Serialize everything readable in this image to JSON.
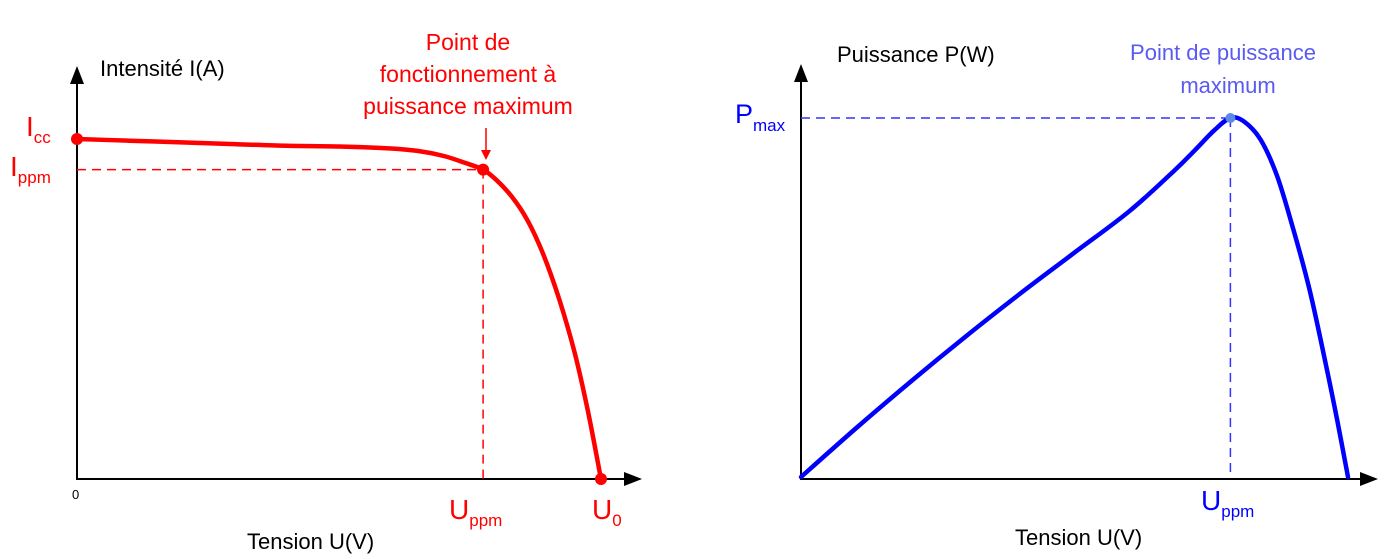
{
  "colors": {
    "axis": "#000000",
    "iv_curve": "#ff0000",
    "iv_text": "#ff0000",
    "pv_curve": "#0000ff",
    "pv_text": "#0000ff",
    "pv_annotation": "#5a5af0",
    "pv_dash": "#3333ff"
  },
  "chart_data": [
    {
      "type": "line",
      "ylabel": "Intensité I(A)",
      "xlabel": "Tension U(V)",
      "origin_label": "0",
      "annotation": {
        "lines": [
          "Point de",
          "fonctionnement à",
          "puissance maximum"
        ]
      },
      "y_marks": [
        {
          "base": "I",
          "sub": "cc",
          "value": 1.0
        },
        {
          "base": "I",
          "sub": "ppm",
          "value": 0.91
        }
      ],
      "x_marks": [
        {
          "base": "U",
          "sub": "ppm",
          "value": 0.775
        },
        {
          "base": "U",
          "sub": "0",
          "value": 1.0
        }
      ],
      "series": [
        {
          "x": [
            0,
            0.1,
            0.2,
            0.3,
            0.4,
            0.5,
            0.6,
            0.65,
            0.7,
            0.74,
            0.775,
            0.8,
            0.83,
            0.86,
            0.89,
            0.92,
            0.95,
            0.975,
            1.0
          ],
          "y": [
            1.0,
            0.995,
            0.99,
            0.985,
            0.98,
            0.978,
            0.972,
            0.965,
            0.95,
            0.93,
            0.91,
            0.88,
            0.83,
            0.76,
            0.66,
            0.53,
            0.37,
            0.2,
            0.0
          ]
        }
      ]
    },
    {
      "type": "line",
      "ylabel": "Puissance P(W)",
      "xlabel": "Tension U(V)",
      "annotation": {
        "lines": [
          "Point de puissance",
          "maximum"
        ]
      },
      "y_marks": [
        {
          "base": "P",
          "sub": "max",
          "value": 1.0
        }
      ],
      "x_marks": [
        {
          "base": "U",
          "sub": "ppm",
          "value": 0.785
        }
      ],
      "series": [
        {
          "x": [
            0,
            0.1,
            0.2,
            0.3,
            0.4,
            0.5,
            0.6,
            0.68,
            0.72,
            0.755,
            0.785,
            0.81,
            0.84,
            0.87,
            0.9,
            0.93,
            0.96,
            0.98,
            1.0
          ],
          "y": [
            0,
            0.135,
            0.265,
            0.39,
            0.51,
            0.625,
            0.74,
            0.85,
            0.91,
            0.965,
            1.0,
            0.99,
            0.94,
            0.84,
            0.69,
            0.52,
            0.31,
            0.16,
            0.0
          ]
        }
      ]
    }
  ]
}
